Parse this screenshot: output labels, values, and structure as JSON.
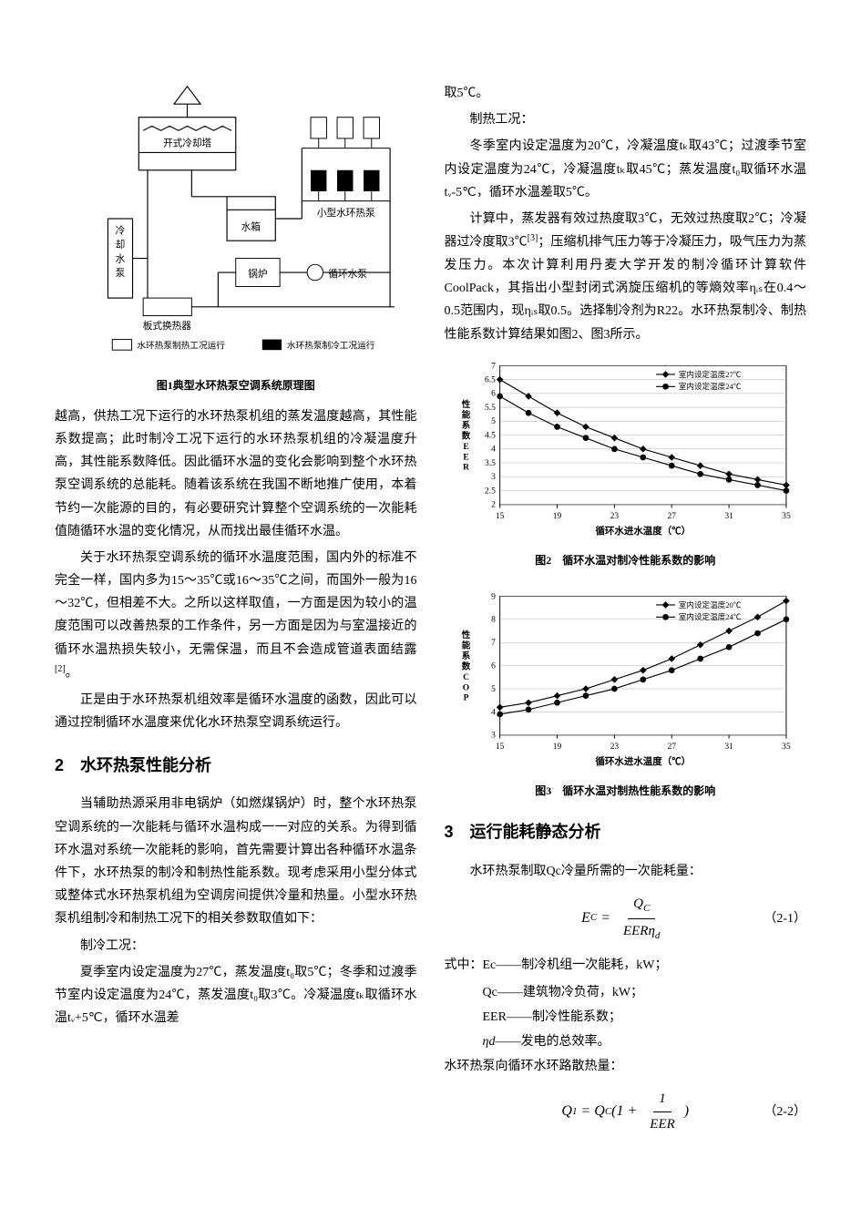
{
  "diagram": {
    "caption": "图1典型水环热泵空调系统原理图",
    "labels": {
      "cooling_tower": "开式冷却塔",
      "cooling_pump": "冷却水泵",
      "tank": "水箱",
      "small_pump": "小型水环热泵",
      "boiler": "锅炉",
      "circ_pump": "循环水泵",
      "plate_hx": "板式换热器",
      "legend_heat": "水环热泵制热工况运行",
      "legend_cool": "水环热泵制冷工况运行"
    },
    "colors": {
      "stroke": "#000000",
      "fill_black": "#000000",
      "bg": "#ffffff"
    }
  },
  "left": {
    "p1": "越高，供热工况下运行的水环热泵机组的蒸发温度越高，其性能系数提高；此时制冷工况下运行的水环热泵机组的冷凝温度升高，其性能系数降低。因此循环水温的变化会影响到整个水环热泵空调系统的总能耗。随着该系统在我国不断地推广使用，本着节约一次能源的目的，有必要研究计算整个空调系统的一次能耗值随循环水温的变化情况，从而找出最佳循环水温。",
    "p2": "关于水环热泵空调系统的循环水温度范围，国内外的标准不完全一样，国内多为15～35℃或16～35℃之间，而国外一般为16～32℃，但相差不大。之所以这样取值，一方面是因为较小的温度范围可以改善热泵的工作条件，另一方面是因为与室温接近的循环水温热损失较小，无需保温，而且不会造成管道表面结露",
    "p2_ref": "[2]",
    "p2_end": "。",
    "p3": "正是由于水环热泵机组效率是循环水温度的函数，因此可以通过控制循环水温度来优化水环热泵空调系统运行。",
    "sec2_title": "2　水环热泵性能分析",
    "p4": "当辅助热源采用非电锅炉（如燃煤锅炉）时，整个水环热泵空调系统的一次能耗与循环水温构成一一对应的关系。为得到循环水温对系统一次能耗的影响，首先需要计算出各种循环水温条件下，水环热泵的制冷和制热性能系数。现考虑采用小型分体式或整体式水环热泵机组为空调房间提供冷量和热量。小型水环热泵机组制冷和制热工况下的相关参数取值如下：",
    "p5_label": "制冷工况：",
    "p5": "夏季室内设定温度为27℃，蒸发温度t₀取5℃；冬季和过渡季节室内设定温度为24℃，蒸发温度t₀取3℃。冷凝温度tₖ取循环水温tᵥ+5℃，循环水温差"
  },
  "right": {
    "p0": "取5℃。",
    "p1_label": "制热工况：",
    "p1": "冬季室内设定温度为20℃，冷凝温度tₖ取43℃；过渡季节室内设定温度为24℃，冷凝温度tₖ取45℃；蒸发温度t₀取循环水温tᵥ-5℃，循环水温差取5℃。",
    "p2a": "计算中，蒸发器有效过热度取3℃，无效过热度取2℃；冷凝器过冷度取3℃",
    "p2_ref": "[3]",
    "p2b": "；压缩机排气压力等于冷凝压力，吸气压力为蒸发压力。本次计算利用丹麦大学开发的制冷循环计算软件CoolPack，其指出小型封闭式涡旋压缩机的等熵效率ηᵢₛ在0.4～0.5范围内，现ηᵢₛ取0.5。选择制冷剂为R22。水环热泵制冷、制热性能系数计算结果如图2、图3所示。",
    "sec3_title": "3　运行能耗静态分析",
    "p3": "水环热泵制取Qc冷量所需的一次能耗量：",
    "eq1_num": "（2-1）",
    "where_label": "式中：",
    "where": {
      "l1": "Ec——制冷机组一次能耗，kW；",
      "l2": "Qc——建筑物冷负荷，kW；",
      "l3": "EER——制冷性能系数；",
      "l4": "ηd——发电的总效率。"
    },
    "p4": "水环热泵向循环水环路散热量：",
    "eq2_num": "（2-2）"
  },
  "chart2": {
    "caption": "图2　循环水温对制冷性能系数的影响",
    "ylabel": "性能系数EER",
    "xlabel": "循环水进水温度（℃）",
    "legend": [
      "室内设定温度27℃",
      "室内设定温度24℃"
    ],
    "xlim": [
      15,
      35
    ],
    "xticks": [
      15,
      19,
      23,
      27,
      31,
      35
    ],
    "ylim": [
      2,
      7
    ],
    "yticks": [
      2,
      2.5,
      3,
      3.5,
      4,
      4.5,
      5,
      5.5,
      6,
      6.5,
      7
    ],
    "series": [
      {
        "marker": "diamond",
        "color": "#000000",
        "x": [
          15,
          17,
          19,
          21,
          23,
          25,
          27,
          29,
          31,
          33,
          35
        ],
        "y": [
          6.5,
          5.9,
          5.3,
          4.8,
          4.4,
          4.0,
          3.7,
          3.4,
          3.1,
          2.9,
          2.7
        ]
      },
      {
        "marker": "circle",
        "color": "#000000",
        "x": [
          15,
          17,
          19,
          21,
          23,
          25,
          27,
          29,
          31,
          33,
          35
        ],
        "y": [
          5.9,
          5.3,
          4.8,
          4.4,
          4.0,
          3.7,
          3.4,
          3.1,
          2.9,
          2.7,
          2.5
        ]
      }
    ],
    "style": {
      "bg": "#ffffff",
      "grid_color": "#aaaaaa",
      "line_width": 1.2,
      "font_size": 10
    }
  },
  "chart3": {
    "caption": "图3　循环水温对制热性能系数的影响",
    "ylabel": "性能系数COP",
    "xlabel": "循环水进水温度（℃）",
    "legend": [
      "室内设定温度20℃",
      "室内设定温度24℃"
    ],
    "xlim": [
      15,
      35
    ],
    "xticks": [
      15,
      19,
      23,
      27,
      31,
      35
    ],
    "ylim": [
      3,
      9
    ],
    "yticks": [
      3,
      4,
      5,
      6,
      7,
      8,
      9
    ],
    "series": [
      {
        "marker": "diamond",
        "color": "#000000",
        "x": [
          15,
          17,
          19,
          21,
          23,
          25,
          27,
          29,
          31,
          33,
          35
        ],
        "y": [
          4.2,
          4.4,
          4.7,
          5.0,
          5.4,
          5.8,
          6.3,
          6.9,
          7.5,
          8.1,
          8.8
        ]
      },
      {
        "marker": "circle",
        "color": "#000000",
        "x": [
          15,
          17,
          19,
          21,
          23,
          25,
          27,
          29,
          31,
          33,
          35
        ],
        "y": [
          3.9,
          4.1,
          4.4,
          4.7,
          5.0,
          5.4,
          5.8,
          6.3,
          6.8,
          7.4,
          8.0
        ]
      }
    ],
    "style": {
      "bg": "#ffffff",
      "grid_color": "#aaaaaa",
      "line_width": 1.2,
      "font_size": 10
    }
  }
}
